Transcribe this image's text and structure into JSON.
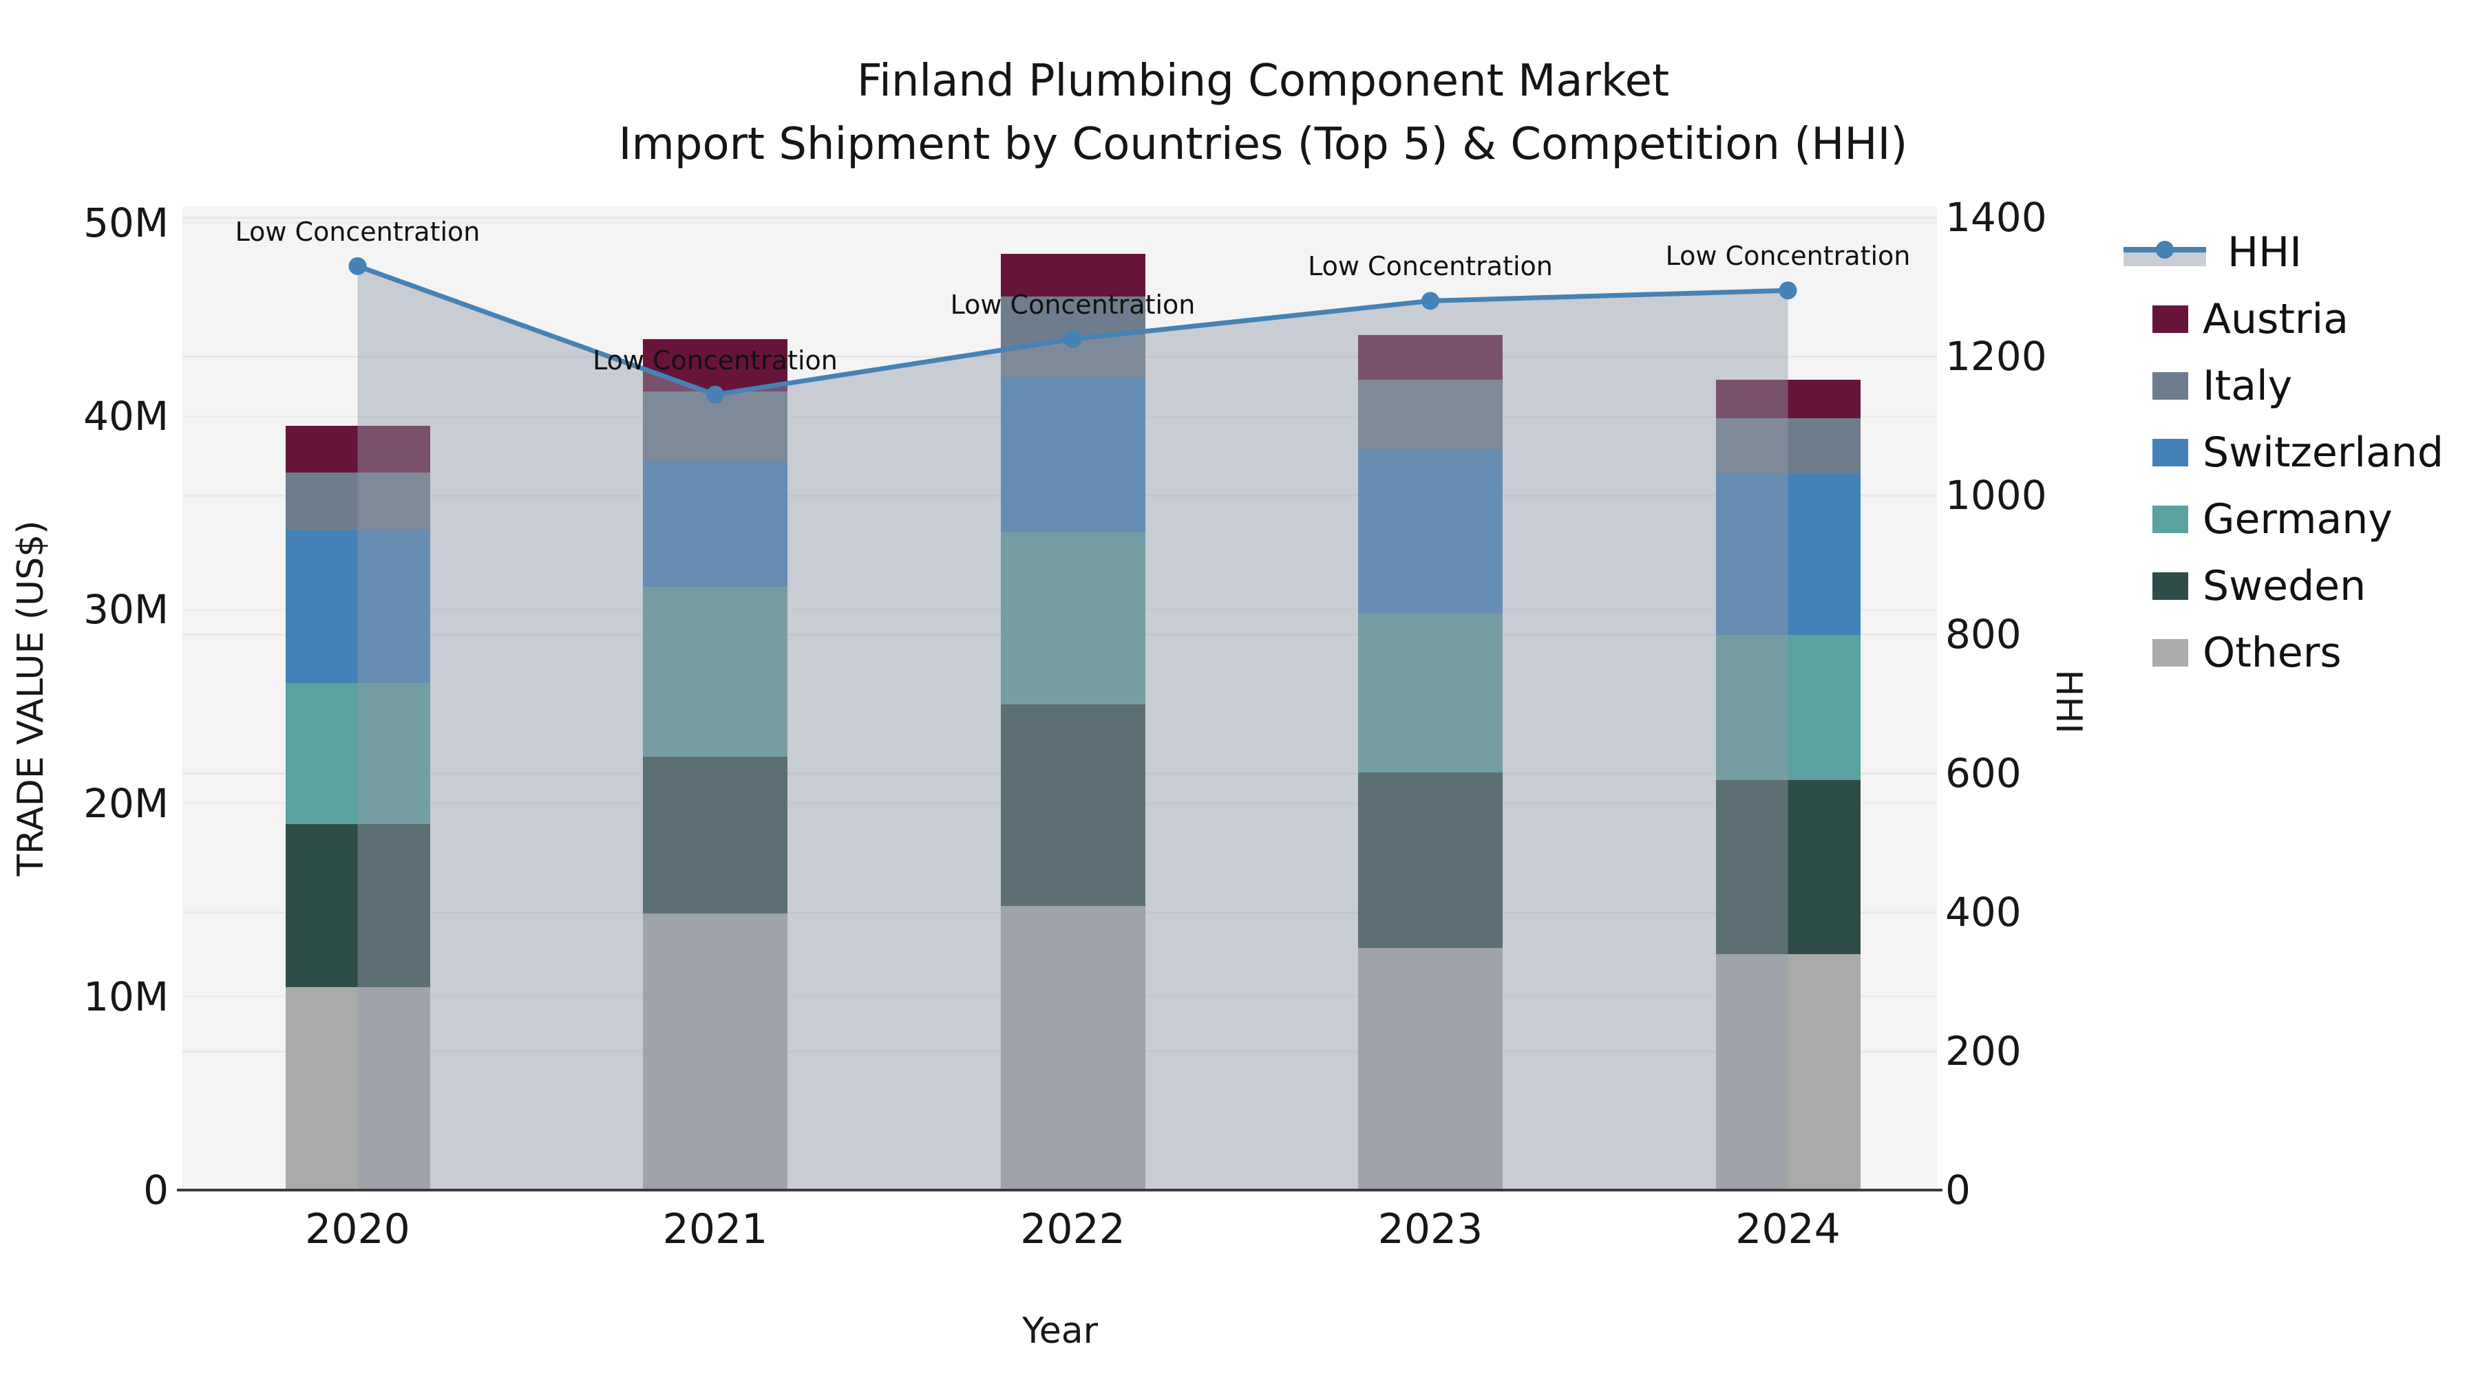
{
  "title": {
    "line1": "Finland Plumbing Component Market",
    "line2": "Import Shipment by Countries (Top 5) & Competition (HHI)"
  },
  "axis_labels": {
    "y_left": "TRADE VALUE (US$)",
    "y_right": "HHI",
    "x": "Year"
  },
  "annotation_label": "Low Concentration",
  "colors": {
    "plot_background": "#f4f4f5",
    "gridline": "#e7e8ea",
    "axis_line": "#3c3c3c",
    "hhi_line": "#4682b4",
    "hhi_area_fill": "rgba(147,156,171,0.45)",
    "austria": "#67143a",
    "italy": "#6e7d8d",
    "switzerland": "#4381b8",
    "germany": "#5ba19f",
    "sweden": "#2e4c48",
    "others": "#a9aba9"
  },
  "legend": [
    {
      "label": "HHI",
      "type": "line",
      "color": "#4682b4"
    },
    {
      "label": "Austria",
      "type": "swatch",
      "color": "#67143a"
    },
    {
      "label": "Italy",
      "type": "swatch",
      "color": "#6e7d8d"
    },
    {
      "label": "Switzerland",
      "type": "swatch",
      "color": "#4381b8"
    },
    {
      "label": "Germany",
      "type": "swatch",
      "color": "#5ba19f"
    },
    {
      "label": "Sweden",
      "type": "swatch",
      "color": "#2e4c48"
    },
    {
      "label": "Others",
      "type": "swatch",
      "color": "#a9aba9"
    }
  ],
  "chart_data": {
    "type": "bar",
    "stacked": true,
    "title": "Finland Plumbing Component Market — Import Shipment by Countries (Top 5) & Competition (HHI)",
    "categories": [
      "2020",
      "2021",
      "2022",
      "2023",
      "2024"
    ],
    "xlabel": "Year",
    "units": "million US$",
    "y_left": {
      "label": "TRADE VALUE (US$)",
      "ticks": [
        "0",
        "10M",
        "20M",
        "30M",
        "40M",
        "50M"
      ],
      "tick_values": [
        0,
        10,
        20,
        30,
        40,
        50
      ],
      "max": 50.85
    },
    "y_right": {
      "label": "HHI",
      "ticks": [
        "0",
        "200",
        "400",
        "600",
        "800",
        "1000",
        "1200",
        "1400"
      ],
      "tick_values": [
        0,
        200,
        400,
        600,
        800,
        1000,
        1200,
        1400
      ],
      "max": 1416
    },
    "series": [
      {
        "name": "Others",
        "color": "#a9aba9",
        "values": [
          10.5,
          14.3,
          14.7,
          12.5,
          12.2
        ]
      },
      {
        "name": "Sweden",
        "color": "#2e4c48",
        "values": [
          8.4,
          8.1,
          10.4,
          9.1,
          9.0
        ]
      },
      {
        "name": "Germany",
        "color": "#5ba19f",
        "values": [
          7.3,
          8.8,
          8.9,
          8.2,
          7.5
        ]
      },
      {
        "name": "Switzerland",
        "color": "#4381b8",
        "values": [
          7.9,
          6.5,
          8.0,
          8.5,
          8.3
        ]
      },
      {
        "name": "Italy",
        "color": "#6e7d8d",
        "values": [
          3.0,
          3.6,
          4.2,
          3.6,
          2.9
        ]
      },
      {
        "name": "Austria",
        "color": "#67143a",
        "values": [
          2.4,
          2.7,
          2.2,
          2.3,
          2.0
        ]
      }
    ],
    "totals": [
      39.5,
      44.0,
      48.4,
      44.2,
      41.9
    ],
    "line": {
      "name": "HHI",
      "axis": "right",
      "color": "#4682b4",
      "values": [
        1330,
        1145,
        1225,
        1280,
        1295
      ],
      "area_fill": "rgba(147,156,171,0.45)",
      "point_annotations": [
        "Low Concentration",
        "Low Concentration",
        "Low Concentration",
        "Low Concentration",
        "Low Concentration"
      ]
    },
    "legend_position": "right",
    "grid": true
  }
}
